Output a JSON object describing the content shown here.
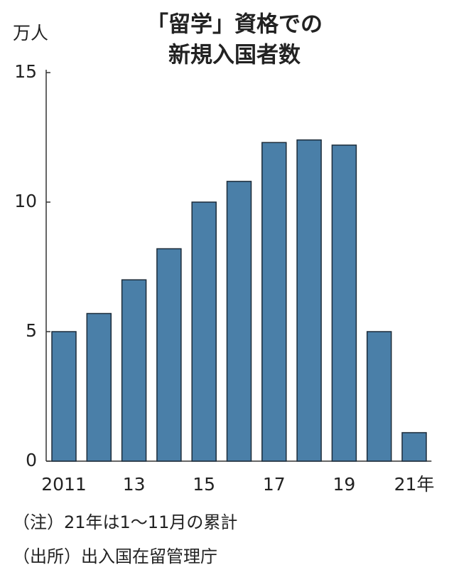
{
  "chart_data": {
    "type": "bar",
    "title": [
      "「留学」資格での",
      "新規入国者数"
    ],
    "y_unit": "万人",
    "categories": [
      "2011",
      null,
      "13",
      null,
      "15",
      null,
      "17",
      null,
      "19",
      null,
      "21年"
    ],
    "values": [
      5.0,
      5.7,
      7.0,
      8.2,
      10.0,
      10.8,
      12.3,
      12.4,
      12.2,
      5.0,
      1.1
    ],
    "color": "#4a7fa8",
    "ylim": [
      0,
      15
    ],
    "yticks": [
      0,
      5,
      10,
      15
    ],
    "grid": false,
    "notes": [
      "（注）21年は1～11月の累計",
      "（出所）出入国在留管理庁"
    ]
  }
}
